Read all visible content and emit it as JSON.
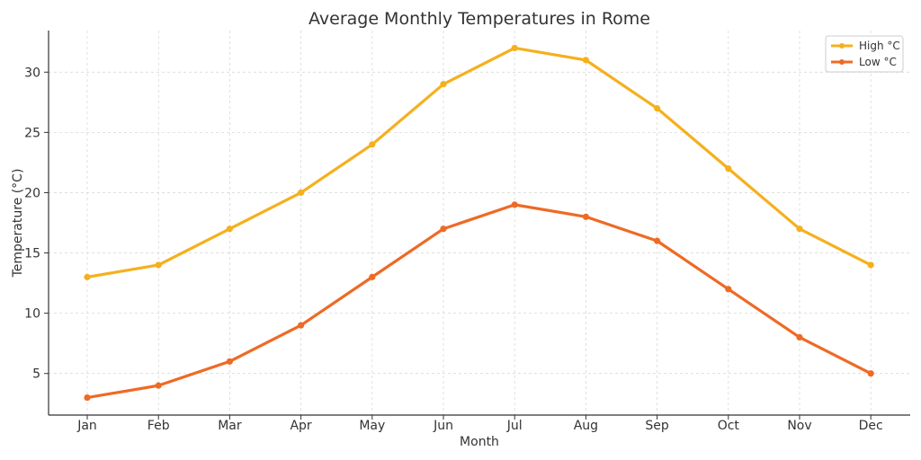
{
  "chart_data": {
    "type": "line",
    "title": "Average Monthly Temperatures in Rome",
    "xlabel": "Month",
    "ylabel": "Temperature (°C)",
    "categories": [
      "Jan",
      "Feb",
      "Mar",
      "Apr",
      "May",
      "Jun",
      "Jul",
      "Aug",
      "Sep",
      "Oct",
      "Nov",
      "Dec"
    ],
    "series": [
      {
        "name": "High °C",
        "color": "#F5B01E",
        "values": [
          13,
          14,
          17,
          20,
          24,
          29,
          32,
          31,
          27,
          22,
          17,
          14
        ]
      },
      {
        "name": "Low °C",
        "color": "#EE6A25",
        "values": [
          3,
          4,
          6,
          9,
          13,
          17,
          19,
          18,
          16,
          12,
          8,
          5
        ]
      }
    ],
    "ylim": [
      1.55,
      33.45
    ],
    "yticks": [
      5,
      10,
      15,
      20,
      25,
      30
    ],
    "grid": true,
    "grid_style": "dashed",
    "legend_position": "top-right"
  }
}
